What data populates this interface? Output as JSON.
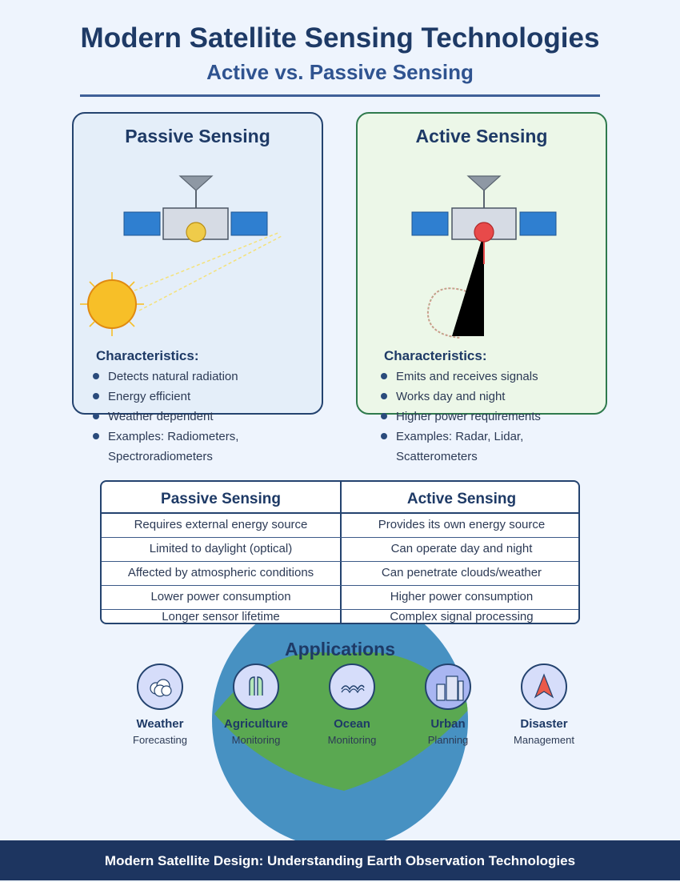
{
  "header": {
    "title": "Modern Satellite Sensing Technologies",
    "subtitle": "Active vs. Passive Sensing"
  },
  "passive": {
    "title": "Passive Sensing",
    "characteristics_heading": "Characteristics:",
    "characteristics": [
      "Detects natural radiation",
      "Energy efficient",
      "Weather dependent",
      "Examples: Radiometers, Spectroradiometers"
    ]
  },
  "active": {
    "title": "Active Sensing",
    "characteristics_heading": "Characteristics:",
    "characteristics": [
      "Emits and receives signals",
      "Works day and night",
      "Higher power requirements",
      "Examples: Radar, Lidar, Scatterometers"
    ]
  },
  "comparison": {
    "headers": [
      "Passive Sensing",
      "Active Sensing"
    ],
    "rows": [
      [
        "Requires external energy source",
        "Provides its own energy source"
      ],
      [
        "Limited to daylight (optical)",
        "Can operate day and night"
      ],
      [
        "Affected by atmospheric conditions",
        "Can penetrate clouds/weather"
      ],
      [
        "Lower power consumption",
        "Higher power consumption"
      ],
      [
        "Longer sensor lifetime",
        "Complex signal processing"
      ]
    ]
  },
  "applications": {
    "title": "Applications",
    "items": [
      {
        "name": "Weather",
        "sub": "Forecasting",
        "icon": "cloud-icon"
      },
      {
        "name": "Agriculture",
        "sub": "Monitoring",
        "icon": "crop-icon"
      },
      {
        "name": "Ocean",
        "sub": "Monitoring",
        "icon": "wave-icon"
      },
      {
        "name": "Urban",
        "sub": "Planning",
        "icon": "buildings-icon"
      },
      {
        "name": "Disaster",
        "sub": "Management",
        "icon": "warning-arrow-icon"
      }
    ]
  },
  "footer": {
    "text": "Modern Satellite Design: Understanding Earth Observation Technologies"
  },
  "colors": {
    "background": "#eef4fd",
    "navy": "#1e3a66",
    "solar_panel": "#2f7fd0",
    "sun": "#f7bf28",
    "earth_ocean": "#4791c2",
    "earth_land": "#5aa851"
  }
}
